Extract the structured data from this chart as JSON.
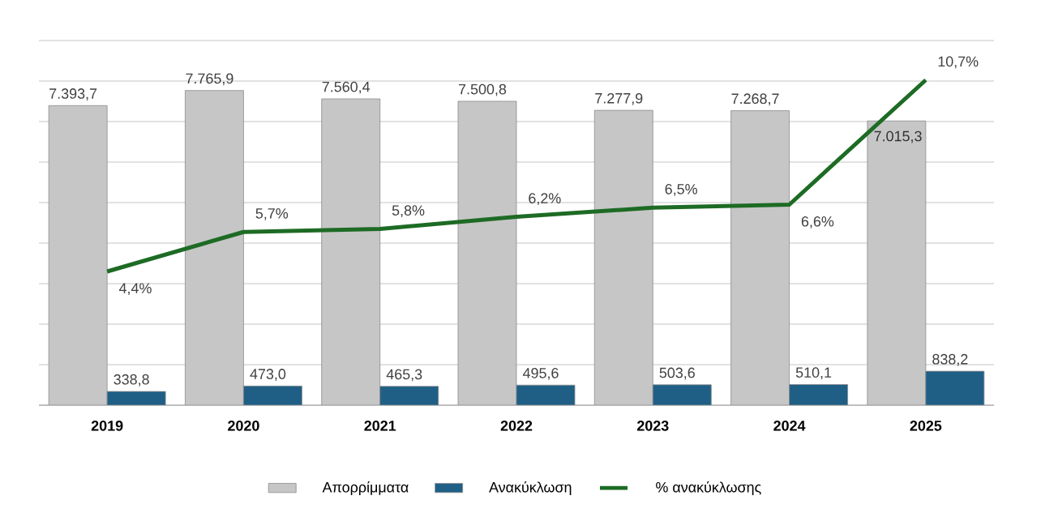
{
  "chart_data": {
    "type": "bar",
    "categories": [
      "2019",
      "2020",
      "2021",
      "2022",
      "2023",
      "2024",
      "2025"
    ],
    "series": [
      {
        "name": "Απορρίμματα",
        "color": "#c6c6c6",
        "values": [
          7393.7,
          7765.9,
          7560.4,
          7500.8,
          7277.9,
          7268.7,
          7015.3
        ],
        "value_labels": [
          "7.393,7",
          "7.765,9",
          "7.560,4",
          "7.500,8",
          "7.277,9",
          "7.268,7",
          "7.015,3"
        ]
      },
      {
        "name": "Ανακύκλωση",
        "color": "#1f5f85",
        "values": [
          338.8,
          473.0,
          465.3,
          495.6,
          503.6,
          510.1,
          838.2
        ],
        "value_labels": [
          "338,8",
          "473,0",
          "465,3",
          "495,6",
          "503,6",
          "510,1",
          "838,2"
        ]
      },
      {
        "name": "% ανακύκλωσης",
        "type": "line",
        "axis": "y2",
        "color": "#1d6b24",
        "values": [
          4.4,
          5.7,
          5.8,
          6.2,
          6.5,
          6.6,
          10.7
        ],
        "value_labels": [
          "4,4%",
          "5,7%",
          "5,8%",
          "6,2%",
          "6,5%",
          "6,6%",
          "10,7%"
        ]
      }
    ],
    "ylim": [
      0,
      9000
    ],
    "yticks": [
      {
        "value": 0,
        "label": null
      },
      {
        "value": 1000,
        "label": null
      },
      {
        "value": 2000,
        "label": null
      },
      {
        "value": 3000,
        "label": null
      },
      {
        "value": 4000,
        "label": null
      },
      {
        "value": 5000,
        "label": null
      },
      {
        "value": 6000,
        "label": null
      },
      {
        "value": 7000,
        "label": null
      },
      {
        "value": 8000,
        "label": null
      },
      {
        "value": 9000,
        "label": null
      }
    ],
    "y2lim": [
      0,
      12
    ],
    "grid": "y",
    "legend": "bottom",
    "tick_labels": "x"
  }
}
